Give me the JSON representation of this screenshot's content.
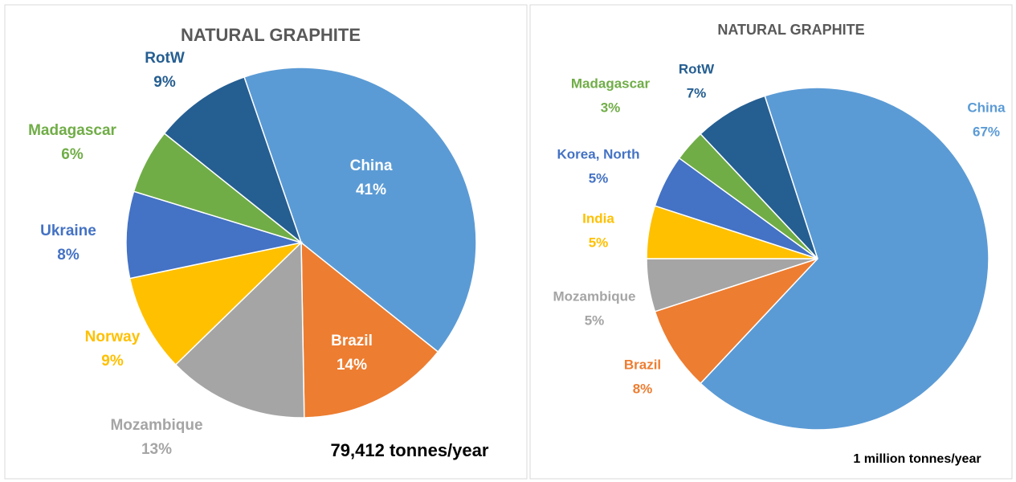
{
  "chart_data": [
    {
      "type": "pie",
      "title": "NATURAL GRAPHITE",
      "categories": [
        "China",
        "Brazil",
        "Mozambique",
        "Norway",
        "Ukraine",
        "Madagascar",
        "RotW"
      ],
      "values": [
        41,
        14,
        13,
        9,
        8,
        6,
        9
      ],
      "value_labels": [
        "41%",
        "14%",
        "13%",
        "9%",
        "8%",
        "6%",
        "9%"
      ],
      "colors": [
        "#5b9bd5",
        "#ed7d31",
        "#a5a5a5",
        "#ffc000",
        "#4472c4",
        "#70ad47",
        "#255e91"
      ],
      "annotation": "79,412 tonnes/year"
    },
    {
      "type": "pie",
      "title": "NATURAL GRAPHITE",
      "categories": [
        "China",
        "Brazil",
        "Mozambique",
        "India",
        "Korea, North",
        "Madagascar",
        "RotW"
      ],
      "values": [
        67,
        8,
        5,
        5,
        5,
        3,
        7
      ],
      "value_labels": [
        "67%",
        "8%",
        "5%",
        "5%",
        "5%",
        "3%",
        "7%"
      ],
      "colors": [
        "#5b9bd5",
        "#ed7d31",
        "#a5a5a5",
        "#ffc000",
        "#4472c4",
        "#70ad47",
        "#255e91"
      ],
      "annotation": "1 million tonnes/year"
    }
  ]
}
